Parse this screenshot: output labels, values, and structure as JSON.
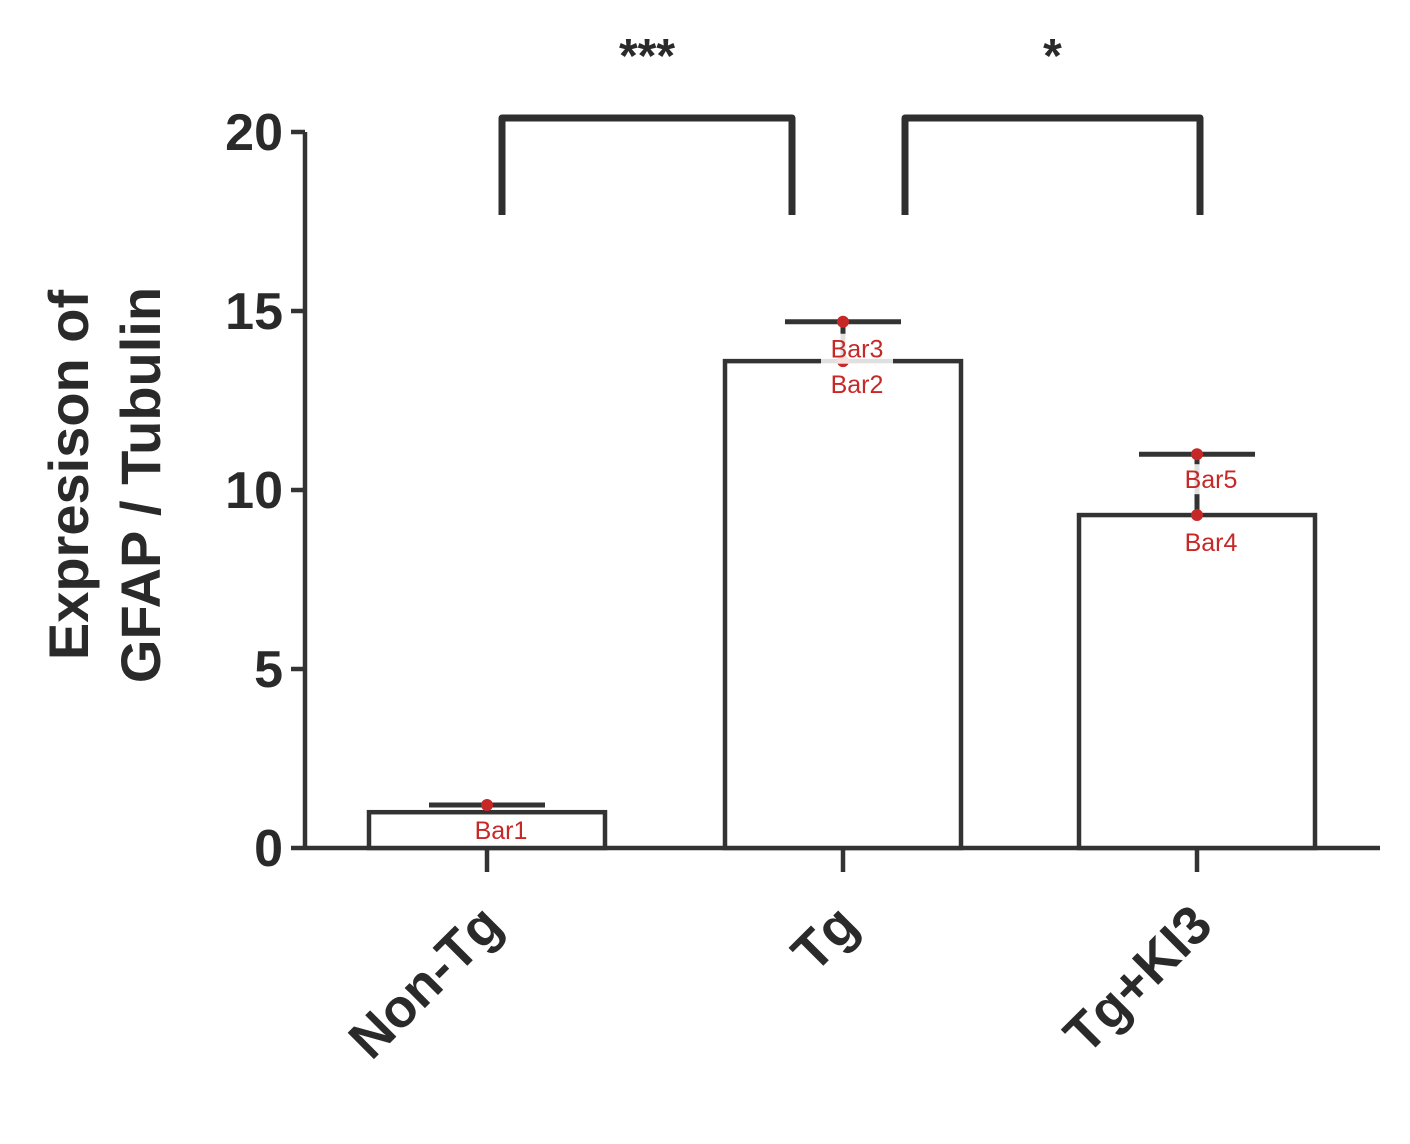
{
  "chart_data": {
    "type": "bar",
    "title": "",
    "xlabel": "",
    "ylabel_lines": [
      "Expresison of",
      "GFAP / Tubulin"
    ],
    "categories": [
      "Non-Tg",
      "Tg",
      "Tg+KI3"
    ],
    "values": [
      1.0,
      13.6,
      9.3
    ],
    "errors": [
      0.2,
      1.1,
      1.7
    ],
    "ylim": [
      0,
      20
    ],
    "yticks": [
      0,
      5,
      10,
      15,
      20
    ],
    "significance": [
      {
        "from": "Non-Tg",
        "to": "Tg",
        "label": "***"
      },
      {
        "from": "Tg",
        "to": "Tg+KI3",
        "label": "*"
      }
    ],
    "annotations": [
      {
        "label": "Bar1",
        "category": "Non-Tg",
        "y": 1.2
      },
      {
        "label": "Bar2",
        "category": "Tg",
        "y": 13.6
      },
      {
        "label": "Bar3",
        "category": "Tg",
        "y": 14.7
      },
      {
        "label": "Bar4",
        "category": "Tg+KI3",
        "y": 9.3
      },
      {
        "label": "Bar5",
        "category": "Tg+KI3",
        "y": 11.0
      }
    ],
    "grid": false,
    "colors": {
      "bar_fill": "#ffffff",
      "bar_stroke": "#333333",
      "annotation": "#c62828"
    }
  }
}
